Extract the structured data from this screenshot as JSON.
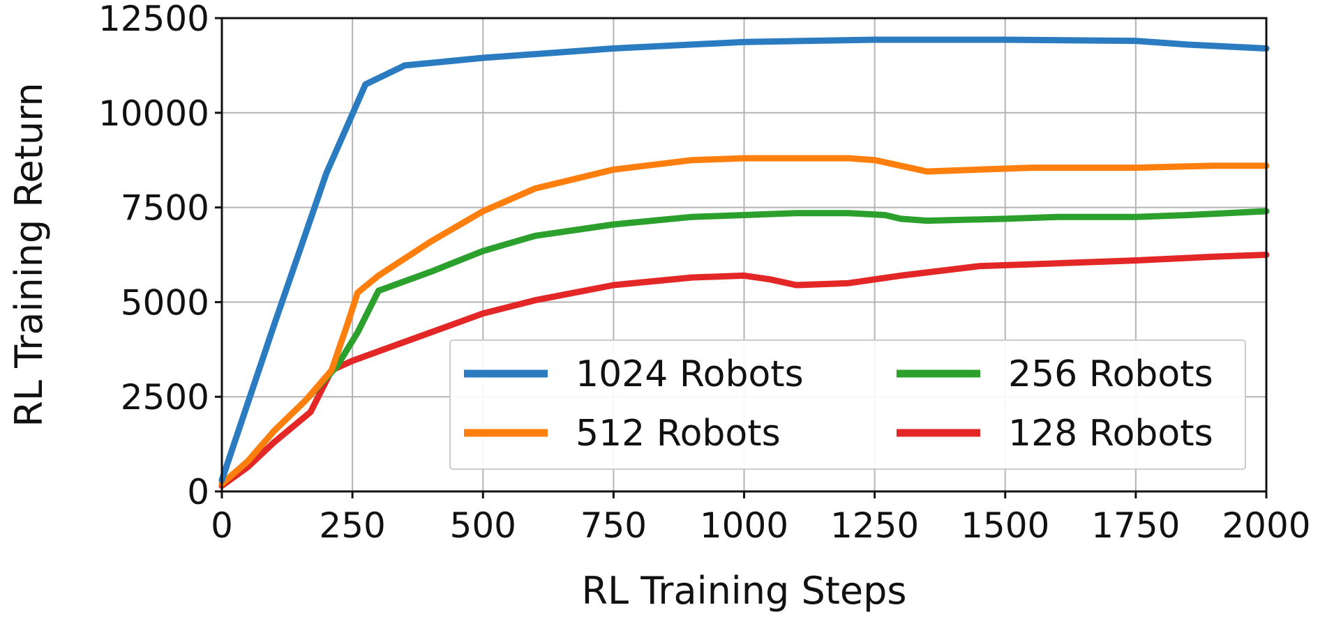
{
  "chart_data": {
    "type": "line",
    "title": "",
    "xlabel": "RL Training Steps",
    "ylabel": "RL Training Return",
    "xlim": [
      0,
      2000
    ],
    "ylim": [
      0,
      12500
    ],
    "xticks": [
      "0",
      "250",
      "500",
      "750",
      "1000",
      "1250",
      "1500",
      "1750",
      "2000"
    ],
    "yticks": [
      "0",
      "2500",
      "5000",
      "7500",
      "10000",
      "12500"
    ],
    "xtick_values": [
      0,
      250,
      500,
      750,
      1000,
      1250,
      1500,
      1750,
      2000
    ],
    "ytick_values": [
      0,
      2500,
      5000,
      7500,
      10000,
      12500
    ],
    "grid": true,
    "legend_position": "lower-right",
    "series": [
      {
        "name": "1024 Robots",
        "color": "#2b7bc0",
        "x": [
          0,
          100,
          200,
          275,
          350,
          500,
          750,
          1000,
          1250,
          1500,
          1750,
          1850,
          2000
        ],
        "y": [
          300,
          4400,
          8400,
          10750,
          11250,
          11450,
          11700,
          11870,
          11930,
          11930,
          11900,
          11800,
          11700
        ]
      },
      {
        "name": "512 Robots",
        "color": "#ff7f0e",
        "x": [
          0,
          50,
          100,
          160,
          210,
          240,
          260,
          300,
          400,
          500,
          600,
          750,
          900,
          1000,
          1100,
          1200,
          1250,
          1300,
          1350,
          1450,
          1550,
          1750,
          1900,
          2000
        ],
        "y": [
          200,
          800,
          1600,
          2400,
          3200,
          4400,
          5250,
          5700,
          6600,
          7400,
          8000,
          8500,
          8750,
          8800,
          8800,
          8800,
          8750,
          8600,
          8450,
          8500,
          8550,
          8550,
          8600,
          8600
        ]
      },
      {
        "name": "256 Robots",
        "color": "#2ca02c",
        "x": [
          0,
          50,
          100,
          160,
          220,
          260,
          300,
          400,
          500,
          600,
          750,
          900,
          1000,
          1100,
          1200,
          1270,
          1300,
          1350,
          1500,
          1600,
          1750,
          1850,
          2000
        ],
        "y": [
          200,
          800,
          1600,
          2400,
          3300,
          4200,
          5300,
          5800,
          6350,
          6750,
          7050,
          7250,
          7300,
          7350,
          7350,
          7300,
          7200,
          7150,
          7200,
          7250,
          7250,
          7300,
          7400
        ]
      },
      {
        "name": "128 Robots",
        "color": "#e32626",
        "x": [
          0,
          50,
          100,
          170,
          210,
          250,
          300,
          400,
          500,
          600,
          750,
          900,
          1000,
          1050,
          1100,
          1200,
          1300,
          1450,
          1550,
          1750,
          1900,
          2000
        ],
        "y": [
          150,
          650,
          1300,
          2100,
          3200,
          3450,
          3700,
          4200,
          4700,
          5050,
          5450,
          5650,
          5700,
          5600,
          5450,
          5500,
          5700,
          5950,
          6000,
          6100,
          6200,
          6250
        ]
      }
    ]
  }
}
